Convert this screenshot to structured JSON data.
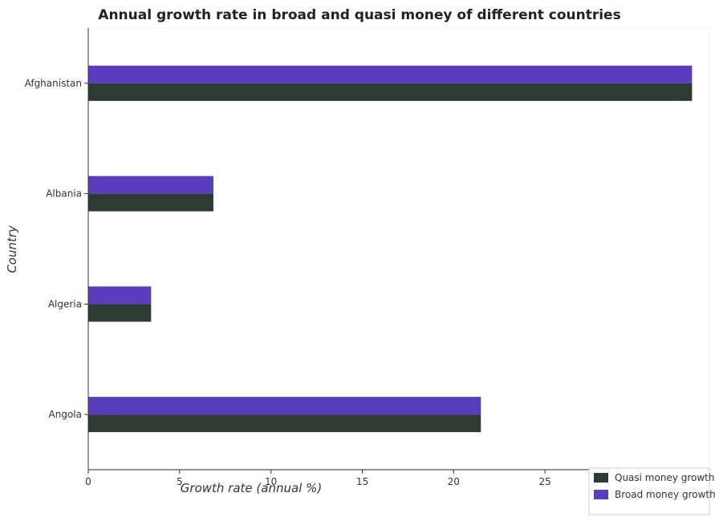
{
  "chart_data": {
    "type": "bar",
    "orientation": "horizontal",
    "title": "Annual growth rate in broad and quasi money of different countries",
    "xlabel": "Growth rate (annual %)",
    "ylabel": "Country",
    "categories": [
      "Afghanistan",
      "Albania",
      "Algeria",
      "Angola"
    ],
    "series": [
      {
        "name": "Quasi money growth",
        "color": "#2e3b32",
        "values": [
          33.05,
          6.85,
          3.44,
          21.49
        ]
      },
      {
        "name": "Broad money growth",
        "color": "#5a3dbf",
        "values": [
          33.05,
          6.85,
          3.44,
          21.49
        ]
      }
    ],
    "xlim": [
      0,
      34
    ],
    "xticks": [
      0,
      5,
      10,
      15,
      20,
      25,
      30
    ],
    "grid": false,
    "legend": "bottom-right"
  }
}
